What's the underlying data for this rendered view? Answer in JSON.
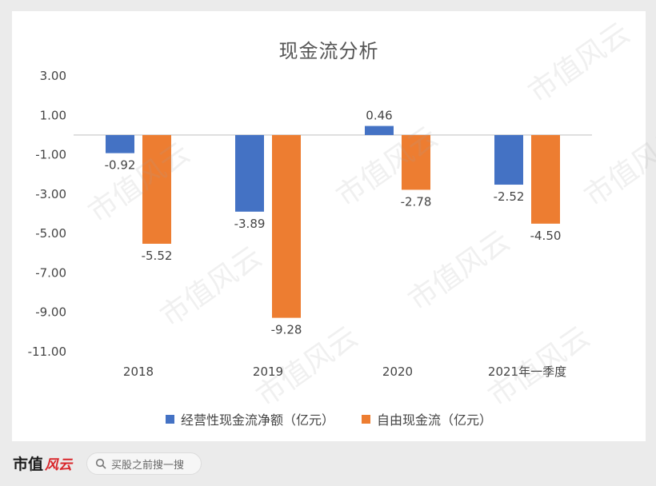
{
  "chart_data": {
    "type": "bar",
    "title": "现金流分析",
    "categories": [
      "2018",
      "2019",
      "2020",
      "2021年一季度"
    ],
    "series": [
      {
        "name": "经营性现金流净额（亿元）",
        "color": "#4472c4",
        "values": [
          -0.92,
          -3.89,
          0.46,
          -2.52
        ]
      },
      {
        "name": "自由现金流（亿元）",
        "color": "#ed7d31",
        "values": [
          -5.52,
          -9.28,
          -2.78,
          -4.5
        ]
      }
    ],
    "yticks": [
      "3.00",
      "1.00",
      "-1.00",
      "-3.00",
      "-5.00",
      "-7.00",
      "-9.00",
      "-11.00"
    ],
    "ylim": [
      -11,
      3
    ],
    "grid": false,
    "legend": "bottom"
  },
  "watermark_text": "市值风云",
  "footer": {
    "logo_text": "市值",
    "logo_accent": "风云",
    "search_icon": "search-icon",
    "search_placeholder": "买股之前搜一搜"
  }
}
